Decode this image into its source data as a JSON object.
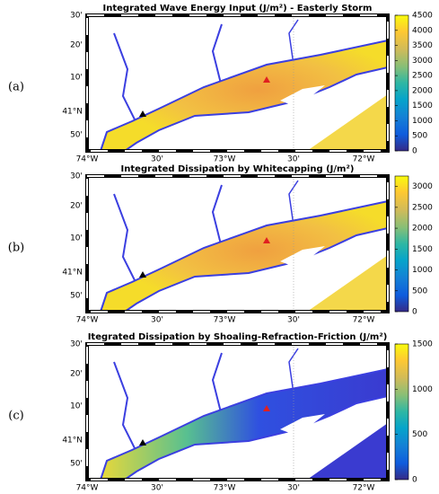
{
  "panels": [
    {
      "label": "(a)",
      "title": "Integrated Wave Energy Input (J/m²) - Easterly Storm",
      "colorbar": {
        "clim": [
          0,
          4500
        ],
        "ticks": [
          0,
          500,
          1000,
          1500,
          2000,
          2500,
          3000,
          3500,
          4000,
          4500
        ]
      }
    },
    {
      "label": "(b)",
      "title": "Integrated Dissipation by Whitecapping (J/m²)",
      "colorbar": {
        "clim": [
          0,
          3250
        ],
        "ticks": [
          0,
          500,
          1000,
          1500,
          2000,
          2500,
          3000
        ]
      }
    },
    {
      "label": "(c)",
      "title": "Itegrated Dissipation by Shoaling-Refraction-Friction (J/m²)",
      "colorbar": {
        "clim": [
          0,
          1500
        ],
        "ticks": [
          0,
          500,
          1000,
          1500
        ]
      }
    }
  ],
  "lat_labels": [
    "30'",
    "20'",
    "10'",
    "41°N",
    "50'"
  ],
  "lon_labels": [
    "74°W",
    "30'",
    "73°W",
    "30'",
    "72°W"
  ]
}
